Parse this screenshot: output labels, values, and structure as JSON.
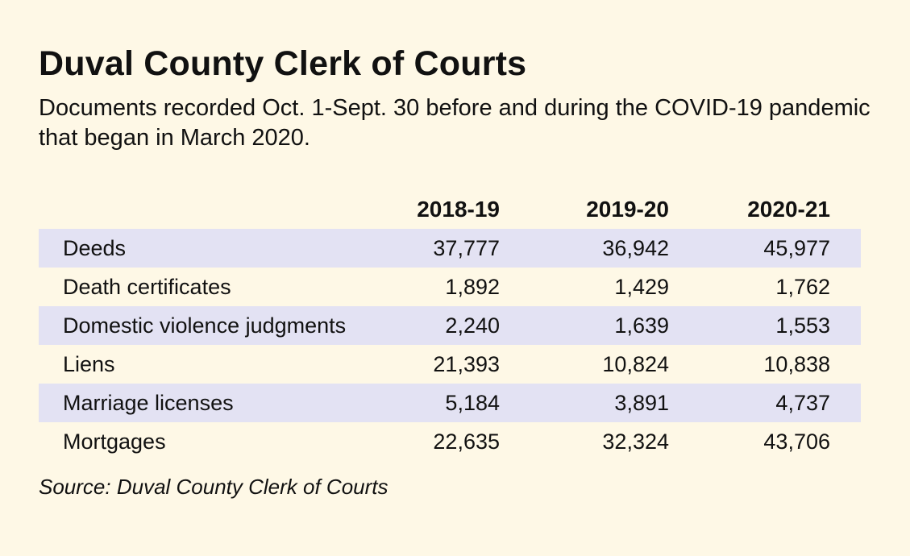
{
  "title": "Duval County Clerk of Courts",
  "subtitle": "Documents recorded Oct. 1-Sept. 30 before and during the COVID-19 pandemic that began in March 2020.",
  "source": "Source: Duval County Clerk of Courts",
  "colors": {
    "background": "#fef8e6",
    "row_shade": "#e3e2f3",
    "text": "#111111"
  },
  "chart_data": {
    "type": "table",
    "title": "Duval County Clerk of Courts",
    "subtitle": "Documents recorded Oct. 1-Sept. 30 before and during the COVID-19 pandemic that began in March 2020.",
    "columns": [
      "2018-19",
      "2019-20",
      "2020-21"
    ],
    "rows": [
      {
        "label": "Deeds",
        "values": [
          "37,777",
          "36,942",
          "45,977"
        ]
      },
      {
        "label": "Death certificates",
        "values": [
          "1,892",
          "1,429",
          "1,762"
        ]
      },
      {
        "label": "Domestic violence judgments",
        "values": [
          "2,240",
          "1,639",
          "1,553"
        ]
      },
      {
        "label": "Liens",
        "values": [
          "21,393",
          "10,824",
          "10,838"
        ]
      },
      {
        "label": "Marriage licenses",
        "values": [
          "5,184",
          "3,891",
          "4,737"
        ]
      },
      {
        "label": "Mortgages",
        "values": [
          "22,635",
          "32,324",
          "43,706"
        ]
      }
    ],
    "source": "Source: Duval County Clerk of Courts"
  }
}
